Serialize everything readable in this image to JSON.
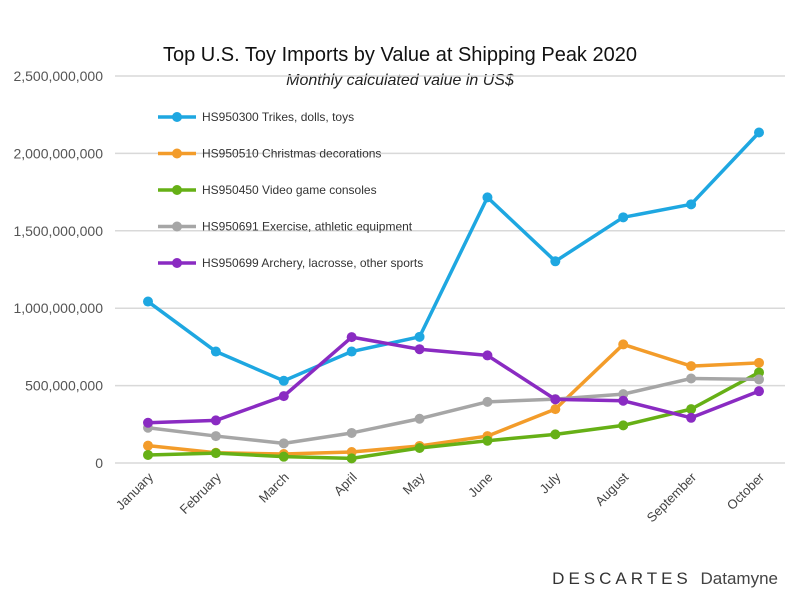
{
  "chart_data": {
    "type": "line",
    "title": "Top U.S. Toy Imports by Value at Shipping Peak 2020",
    "subtitle": "Monthly calculated value in US$",
    "xlabel": "",
    "ylabel": "",
    "categories": [
      "January",
      "February",
      "March",
      "April",
      "May",
      "June",
      "July",
      "August",
      "September",
      "October"
    ],
    "ylim": [
      0,
      2500000000
    ],
    "yticks": [
      0,
      500000000,
      1000000000,
      1500000000,
      2000000000,
      2500000000
    ],
    "ytick_labels": [
      "0",
      "500,000,000",
      "1,000,000,000",
      "1,500,000,000",
      "2,000,000,000",
      "2,500,000,000"
    ],
    "grid": true,
    "legend_placement": "top-left",
    "series": [
      {
        "name": "HS950300 Trikes, dolls, toys",
        "color": "#1ea7e1",
        "values": [
          1043000000,
          720000000,
          531000000,
          720000000,
          815000000,
          1716000000,
          1303000000,
          1587000000,
          1671000000,
          2135000000
        ]
      },
      {
        "name": "HS950510 Christmas decorations",
        "color": "#f39c2a",
        "values": [
          112000000,
          66000000,
          58000000,
          71000000,
          110000000,
          174000000,
          348000000,
          766000000,
          626000000,
          647000000
        ]
      },
      {
        "name": "HS950450 Video game consoles",
        "color": "#66b016",
        "values": [
          52000000,
          64000000,
          41000000,
          30000000,
          97000000,
          144000000,
          185000000,
          243000000,
          348000000,
          585000000
        ]
      },
      {
        "name": "HS950691 Exercise, athletic equipment",
        "color": "#a6a6a6",
        "values": [
          228000000,
          174000000,
          127000000,
          194000000,
          286000000,
          395000000,
          413000000,
          445000000,
          546000000,
          540000000
        ]
      },
      {
        "name": "HS950699 Archery, lacrosse, other sports",
        "color": "#8a2bc2",
        "values": [
          260000000,
          275000000,
          432000000,
          813000000,
          735000000,
          695000000,
          411000000,
          402000000,
          292000000,
          464000000
        ]
      }
    ]
  },
  "logo": {
    "brand": "DESCARTES",
    "product": "Datamyne"
  }
}
